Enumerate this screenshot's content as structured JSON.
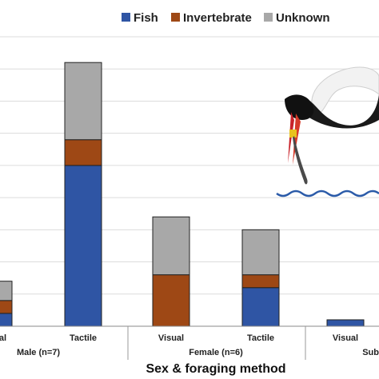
{
  "chart_data": {
    "type": "bar",
    "stacked": true,
    "xlabel": "Sex & foraging method",
    "ylabel": "",
    "ylim": [
      0,
      9
    ],
    "grid": true,
    "legend_position": "top",
    "categories": [
      "Visual",
      "Tactile",
      "Visual",
      "Tactile",
      "Visual"
    ],
    "groups": [
      {
        "label": "Male (n=7)"
      },
      {
        "label": "Female (n=6)"
      },
      {
        "label": "Sub"
      }
    ],
    "series": [
      {
        "name": "Fish",
        "color": "#2f55a4",
        "values": [
          0.4,
          5.0,
          0.0,
          1.2,
          0.2
        ]
      },
      {
        "name": "Invertebrate",
        "color": "#9e4815",
        "values": [
          0.4,
          0.8,
          1.6,
          0.4,
          0.0
        ]
      },
      {
        "name": "Unknown",
        "color": "#a8a8a8",
        "values": [
          0.6,
          2.4,
          1.8,
          1.4,
          0.0
        ]
      }
    ]
  },
  "illustration": {
    "subject": "stork-icon",
    "water_color": "#2a5aa8"
  }
}
